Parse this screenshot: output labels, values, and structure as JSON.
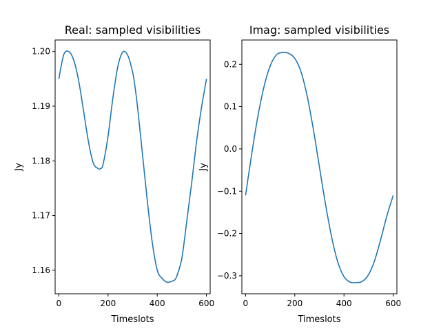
{
  "chart_data": [
    {
      "type": "line",
      "title": "Real: sampled visibilities",
      "xlabel": "Timeslots",
      "ylabel": "Jy",
      "xlim": [
        -15,
        615
      ],
      "ylim": [
        1.1557,
        1.2021
      ],
      "xticks": [
        0,
        200,
        400,
        600
      ],
      "yticks": [
        1.16,
        1.17,
        1.18,
        1.19,
        1.2
      ],
      "ytick_labels": [
        "1.16",
        "1.17",
        "1.18",
        "1.19",
        "1.20"
      ],
      "grid": false,
      "series": [
        {
          "color": "#1f77b4",
          "x": [
            0,
            20,
            40,
            60,
            80,
            100,
            120,
            140,
            160,
            170,
            180,
            200,
            220,
            240,
            260,
            280,
            300,
            310,
            320,
            340,
            360,
            380,
            400,
            420,
            440,
            460,
            470,
            480,
            500,
            520,
            540,
            560,
            580,
            600
          ],
          "y": [
            1.195,
            1.1994,
            1.2,
            1.1985,
            1.1948,
            1.1893,
            1.1836,
            1.1796,
            1.1786,
            1.1786,
            1.1794,
            1.1845,
            1.1916,
            1.1973,
            1.1999,
            1.1993,
            1.1962,
            1.1934,
            1.1898,
            1.1812,
            1.1725,
            1.165,
            1.16,
            1.1585,
            1.1578,
            1.158,
            1.1582,
            1.159,
            1.1622,
            1.169,
            1.176,
            1.1836,
            1.1898,
            1.195
          ]
        }
      ]
    },
    {
      "type": "line",
      "title": "Imag: sampled visibilities",
      "xlabel": "Timeslots",
      "ylabel": "Jy",
      "xlim": [
        -15,
        615
      ],
      "ylim": [
        -0.3425,
        0.2575
      ],
      "xticks": [
        0,
        200,
        400,
        600
      ],
      "yticks": [
        -0.3,
        -0.2,
        -0.1,
        0.0,
        0.1,
        0.2
      ],
      "ytick_labels": [
        "−0.3",
        "−0.2",
        "−0.1",
        "0.0",
        "0.1",
        "0.2"
      ],
      "grid": false,
      "series": [
        {
          "color": "#1f77b4",
          "x": [
            0,
            25,
            50,
            75,
            100,
            125,
            150,
            175,
            200,
            225,
            250,
            275,
            300,
            325,
            350,
            375,
            400,
            425,
            450,
            475,
            500,
            525,
            550,
            575,
            600
          ],
          "y": [
            -0.11,
            -0.012,
            0.077,
            0.147,
            0.196,
            0.222,
            0.228,
            0.226,
            0.214,
            0.183,
            0.126,
            0.048,
            -0.042,
            -0.131,
            -0.209,
            -0.268,
            -0.302,
            -0.315,
            -0.316,
            -0.313,
            -0.297,
            -0.263,
            -0.212,
            -0.157,
            -0.11
          ]
        }
      ]
    }
  ]
}
